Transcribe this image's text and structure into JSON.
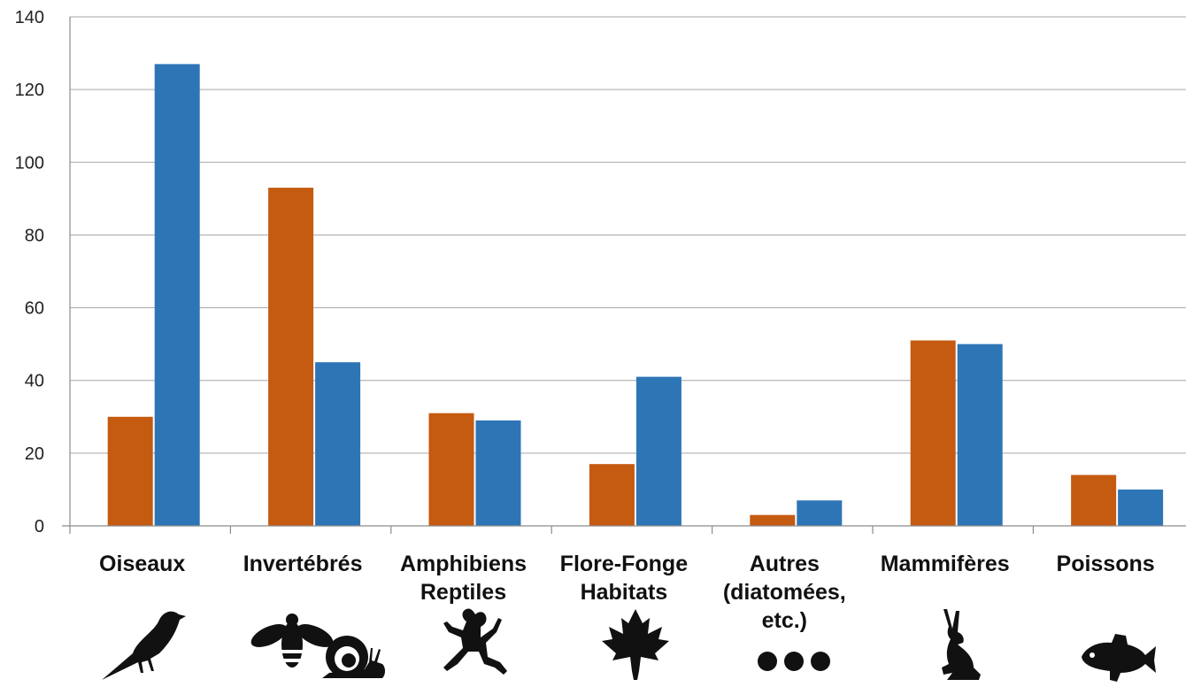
{
  "chart_data": {
    "type": "bar",
    "categories": [
      [
        "Oiseaux"
      ],
      [
        "Invertébrés"
      ],
      [
        "Amphibiens",
        "Reptiles"
      ],
      [
        "Flore-Fonge",
        "Habitats"
      ],
      [
        "Autres",
        "(diatomées,",
        "etc.)"
      ],
      [
        "Mammifères"
      ],
      [
        "Poissons"
      ]
    ],
    "category_icons": [
      "bird-icon",
      "bee-and-snail-icon",
      "frog-icon",
      "maple-leaf-icon",
      "three-dots-icon",
      "rabbit-icon",
      "fish-icon"
    ],
    "series": [
      {
        "color": "#C55A11",
        "values": [
          30,
          93,
          31,
          17,
          3,
          51,
          14
        ]
      },
      {
        "color": "#2E75B6",
        "values": [
          127,
          45,
          29,
          41,
          7,
          50,
          10
        ]
      }
    ],
    "y_ticks": [
      "0",
      "20",
      "40",
      "60",
      "80",
      "100",
      "120",
      "140"
    ],
    "ylim": [
      0,
      140
    ],
    "title": "",
    "xlabel": "",
    "ylabel": "",
    "grid": true,
    "legend": "none"
  }
}
